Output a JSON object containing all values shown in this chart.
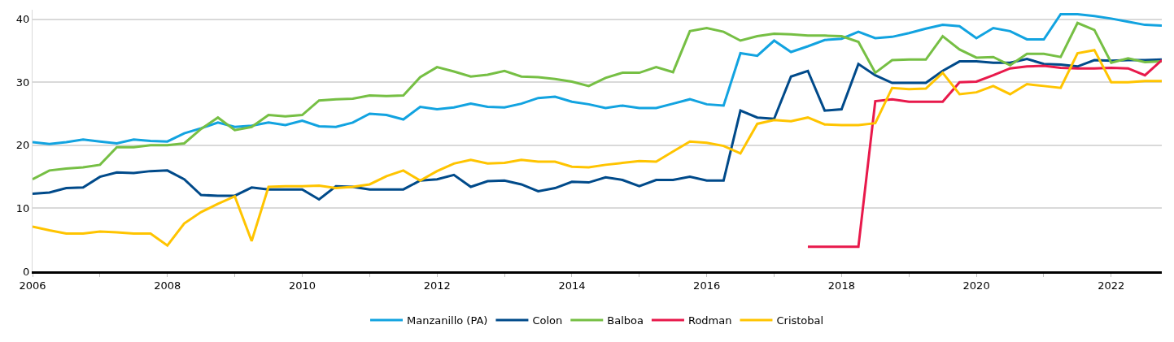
{
  "chart_data": {
    "type": "line",
    "x": [
      2006,
      2006.25,
      2006.5,
      2006.75,
      2007,
      2007.25,
      2007.5,
      2007.75,
      2008,
      2008.25,
      2008.5,
      2008.75,
      2009,
      2009.25,
      2009.5,
      2009.75,
      2010,
      2010.25,
      2010.5,
      2010.75,
      2011,
      2011.25,
      2011.5,
      2011.75,
      2012,
      2012.25,
      2012.5,
      2012.75,
      2013,
      2013.25,
      2013.5,
      2013.75,
      2014,
      2014.25,
      2014.5,
      2014.75,
      2015,
      2015.25,
      2015.5,
      2015.75,
      2016,
      2016.25,
      2016.5,
      2016.75,
      2017,
      2017.25,
      2017.5,
      2017.75,
      2018,
      2018.25,
      2018.5,
      2018.75,
      2019,
      2019.25,
      2019.5,
      2019.75,
      2020,
      2020.25,
      2020.5,
      2020.75,
      2021,
      2021.25,
      2021.5,
      2021.75,
      2022,
      2022.25,
      2022.5,
      2022.75
    ],
    "series": [
      {
        "name": "Manzanillo (PA)",
        "color": "#12a3e0",
        "values": [
          20.5,
          20.2,
          20.5,
          20.9,
          20.6,
          20.3,
          20.9,
          20.7,
          20.6,
          21.9,
          22.7,
          23.6,
          22.9,
          23.1,
          23.6,
          23.2,
          23.9,
          23.0,
          22.9,
          23.6,
          25.0,
          24.8,
          24.1,
          26.1,
          25.7,
          26.0,
          26.6,
          26.1,
          26.0,
          26.6,
          27.5,
          27.7,
          26.9,
          26.5,
          25.9,
          26.3,
          25.9,
          25.9,
          26.6,
          27.3,
          26.5,
          26.3,
          34.6,
          34.2,
          36.6,
          34.8,
          35.7,
          36.7,
          36.9,
          38.0,
          37.0,
          37.2,
          37.8,
          38.5,
          39.1,
          38.9,
          37.0,
          38.6,
          38.1,
          36.8,
          36.8,
          40.8,
          40.8,
          40.5,
          40.1,
          39.6,
          39.1,
          39.0
        ]
      },
      {
        "name": "Colon",
        "color": "#004a8a",
        "values": [
          12.3,
          12.5,
          13.2,
          13.3,
          15.0,
          15.7,
          15.6,
          15.9,
          16.0,
          14.6,
          12.1,
          12.0,
          12.0,
          13.3,
          13.0,
          13.0,
          13.0,
          11.4,
          13.5,
          13.4,
          13.0,
          13.0,
          13.0,
          14.4,
          14.6,
          15.3,
          13.4,
          14.3,
          14.4,
          13.8,
          12.7,
          13.2,
          14.2,
          14.1,
          14.9,
          14.5,
          13.5,
          14.5,
          14.5,
          15.0,
          14.4,
          14.4,
          25.5,
          24.4,
          24.2,
          30.9,
          31.8,
          25.5,
          25.7,
          32.9,
          31.1,
          29.9,
          29.9,
          29.9,
          31.8,
          33.3,
          33.3,
          33.1,
          33.1,
          33.7,
          32.9,
          32.8,
          32.5,
          33.5,
          33.4,
          33.5,
          33.5,
          33.6
        ]
      },
      {
        "name": "Balboa",
        "color": "#76bf44",
        "values": [
          14.6,
          16.0,
          16.3,
          16.5,
          16.9,
          19.7,
          19.7,
          20.0,
          20.0,
          20.3,
          22.6,
          24.4,
          22.4,
          22.9,
          24.8,
          24.6,
          24.8,
          27.1,
          27.3,
          27.4,
          27.9,
          27.8,
          27.9,
          30.8,
          32.4,
          31.7,
          30.9,
          31.2,
          31.8,
          30.9,
          30.8,
          30.5,
          30.1,
          29.4,
          30.7,
          31.5,
          31.5,
          32.4,
          31.6,
          38.1,
          38.6,
          38.0,
          36.6,
          37.3,
          37.7,
          37.6,
          37.4,
          37.4,
          37.3,
          36.4,
          31.5,
          33.5,
          33.6,
          33.6,
          37.3,
          35.2,
          33.9,
          34.0,
          32.7,
          34.5,
          34.5,
          34.0,
          39.4,
          38.3,
          33.1,
          33.8,
          33.2,
          33.3
        ]
      },
      {
        "name": "Rodman",
        "color": "#e8194b",
        "values": [
          null,
          null,
          null,
          null,
          null,
          null,
          null,
          null,
          null,
          null,
          null,
          null,
          null,
          null,
          null,
          null,
          null,
          null,
          null,
          null,
          null,
          null,
          null,
          null,
          null,
          null,
          null,
          null,
          null,
          null,
          null,
          null,
          null,
          null,
          null,
          null,
          null,
          null,
          null,
          null,
          null,
          null,
          null,
          null,
          null,
          null,
          3.9,
          3.9,
          3.9,
          3.9,
          27.0,
          27.3,
          26.9,
          26.9,
          26.9,
          30.0,
          30.1,
          31.1,
          32.2,
          32.5,
          32.6,
          32.3,
          32.2,
          32.2,
          32.3,
          32.2,
          31.1,
          33.5
        ]
      },
      {
        "name": "Cristobal",
        "color": "#ffc400",
        "values": [
          7.1,
          6.5,
          6.0,
          6.0,
          6.3,
          6.2,
          6.0,
          6.0,
          4.1,
          7.6,
          9.4,
          10.7,
          11.9,
          4.8,
          13.4,
          13.5,
          13.5,
          13.6,
          13.2,
          13.4,
          13.8,
          15.1,
          16.0,
          14.4,
          15.9,
          17.1,
          17.7,
          17.1,
          17.2,
          17.7,
          17.4,
          17.4,
          16.6,
          16.5,
          16.9,
          17.2,
          17.5,
          17.4,
          19.0,
          20.6,
          20.4,
          19.9,
          18.7,
          23.4,
          24.0,
          23.8,
          24.4,
          23.3,
          23.2,
          23.2,
          23.5,
          29.1,
          28.9,
          29.0,
          31.5,
          28.1,
          28.4,
          29.4,
          28.1,
          29.7,
          29.4,
          29.1,
          34.6,
          35.1,
          30.0,
          30.0,
          30.2,
          30.2
        ]
      }
    ],
    "xlim": [
      2006,
      2022.75
    ],
    "xticks": [
      2006,
      {
        "value": 2007,
        "label": null
      },
      2008,
      {
        "value": 2009,
        "label": null
      },
      2010,
      {
        "value": 2011,
        "label": null
      },
      2012,
      {
        "value": 2013,
        "label": null
      },
      2014,
      {
        "value": 2015,
        "label": null
      },
      2016,
      {
        "value": 2017,
        "label": null
      },
      2018,
      {
        "value": 2019,
        "label": null
      },
      2020,
      {
        "value": 2021,
        "label": null
      },
      2022
    ],
    "ylim": [
      0,
      41.5
    ],
    "yticks": [
      0,
      10,
      20,
      30,
      40
    ],
    "grid": "y",
    "legend": "bottom",
    "marker": "none",
    "line_style": "solid"
  }
}
